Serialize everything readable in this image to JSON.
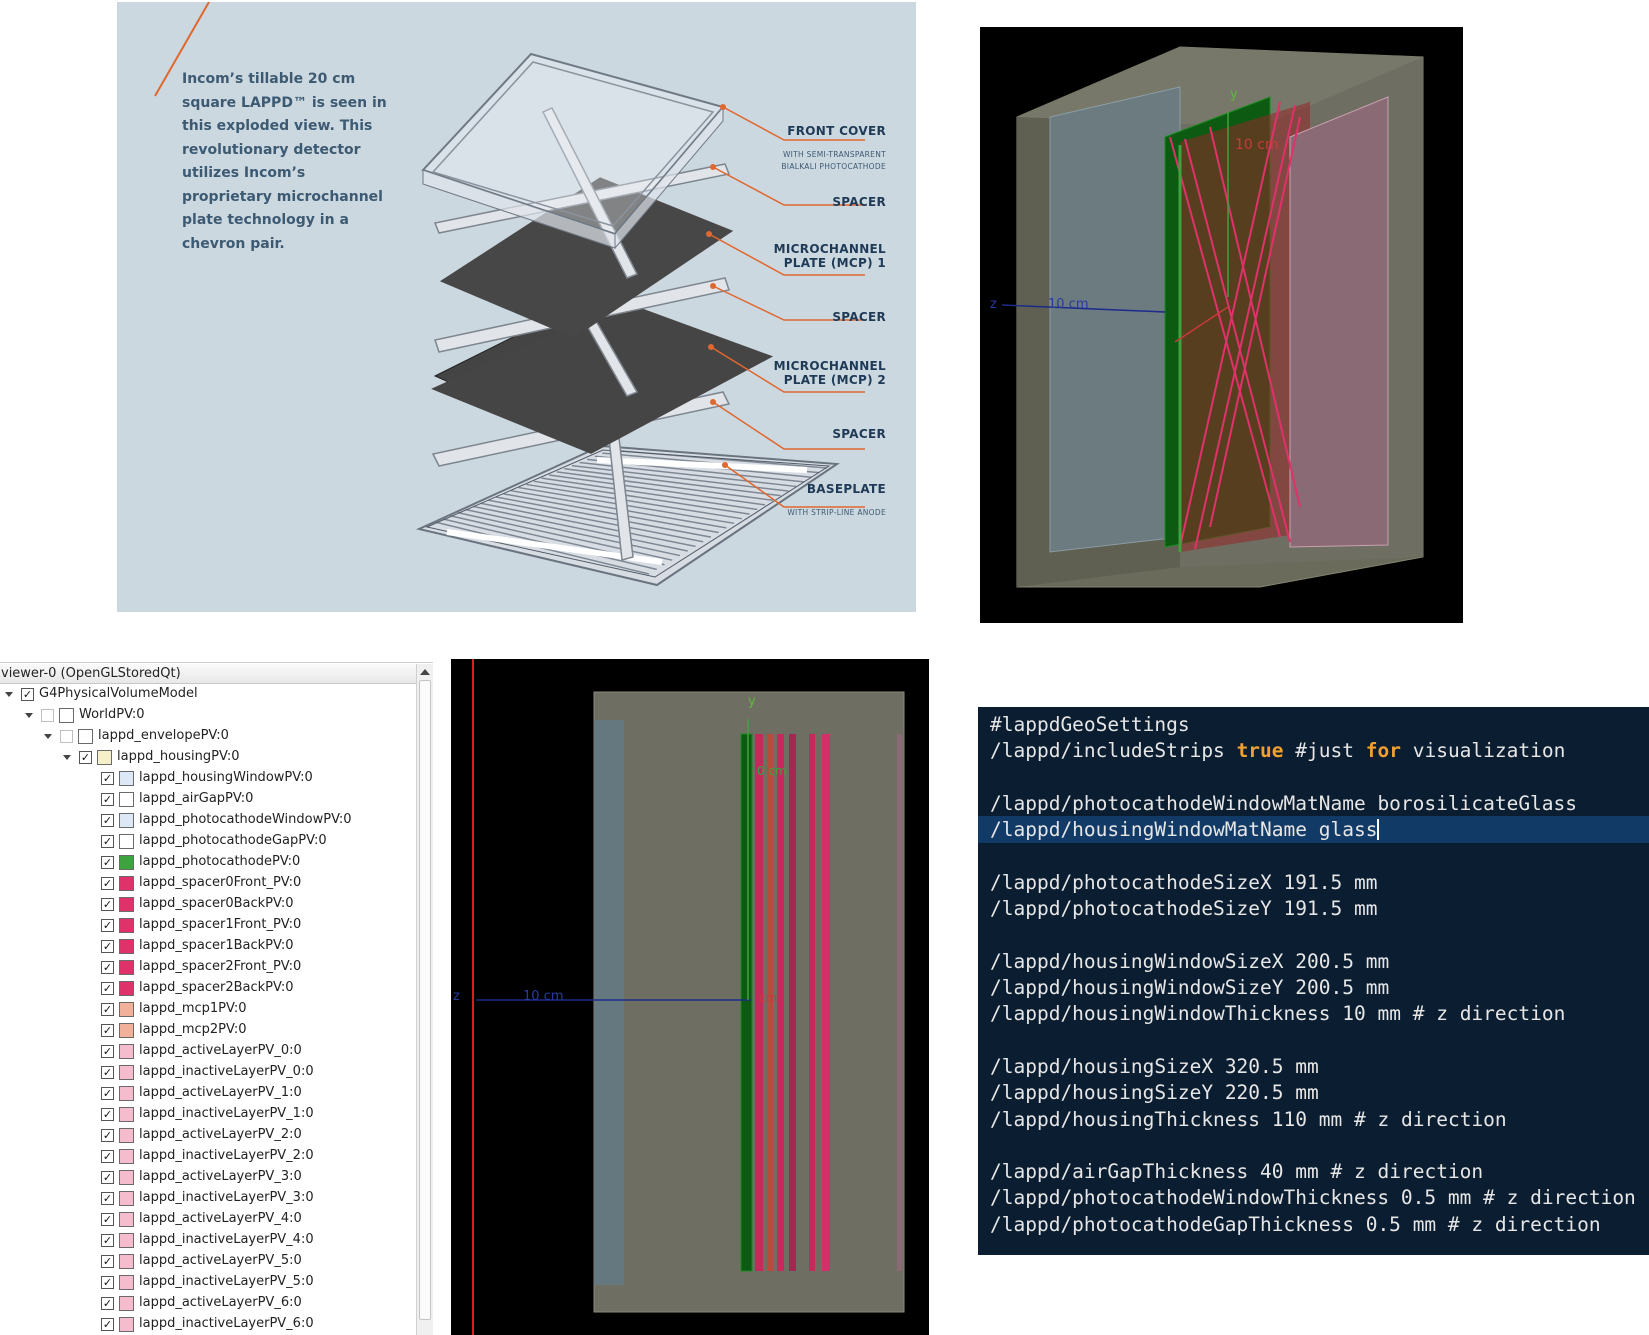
{
  "figure": {
    "caption": "Incom’s tillable 20 cm square LAPPD™ is seen in this exploded view. This revolutionary detector utilizes Incom’s proprietary microchannel plate technology in a chevron pair.",
    "labels": [
      {
        "title_lines": [
          "FRONT COVER"
        ],
        "sub_lines": [
          "WITH SEMI-TRANSPARENT",
          "BIALKALI PHOTOCATHODE"
        ]
      },
      {
        "title_lines": [
          "SPACER"
        ],
        "sub_lines": []
      },
      {
        "title_lines": [
          "MICROCHANNEL",
          "PLATE (MCP) 1"
        ],
        "sub_lines": []
      },
      {
        "title_lines": [
          "SPACER"
        ],
        "sub_lines": []
      },
      {
        "title_lines": [
          "MICROCHANNEL",
          "PLATE (MCP) 2"
        ],
        "sub_lines": []
      },
      {
        "title_lines": [
          "SPACER"
        ],
        "sub_lines": []
      },
      {
        "title_lines": [
          "BASEPLATE"
        ],
        "sub_lines": [
          "WITH STRIP-LINE ANODE"
        ]
      }
    ],
    "accent_color": "#e0672e"
  },
  "viewer3d": {
    "axis_y": "y",
    "axis_z": "z",
    "scale_label_top": "10 cm",
    "scale_label_left": "10 cm"
  },
  "tree": {
    "header": "viewer-0 (OpenGLStoredQt)",
    "items": [
      {
        "label": "G4PhysicalVolumeModel",
        "level": 0,
        "expanded": true,
        "checked": true,
        "color": null
      },
      {
        "label": "WorldPV:0",
        "level": 1,
        "expanded": true,
        "checked": false,
        "color": "#ffffff"
      },
      {
        "label": "lappd_envelopePV:0",
        "level": 2,
        "expanded": true,
        "checked": false,
        "color": "#ffffff"
      },
      {
        "label": "lappd_housingPV:0",
        "level": 3,
        "expanded": true,
        "checked": true,
        "color": "#f5f0c8"
      },
      {
        "label": "lappd_housingWindowPV:0",
        "level": 4,
        "checked": true,
        "color": "#dce8f5"
      },
      {
        "label": "lappd_airGapPV:0",
        "level": 4,
        "checked": true,
        "color": "#ffffff"
      },
      {
        "label": "lappd_photocathodeWindowPV:0",
        "level": 4,
        "checked": true,
        "color": "#dce8f5"
      },
      {
        "label": "lappd_photocathodeGapPV:0",
        "level": 4,
        "checked": true,
        "color": "#ffffff"
      },
      {
        "label": "lappd_photocathodePV:0",
        "level": 4,
        "checked": true,
        "color": "#3ea23e"
      },
      {
        "label": "lappd_spacer0Front_PV:0",
        "level": 4,
        "checked": true,
        "color": "#e0326a"
      },
      {
        "label": "lappd_spacer0BackPV:0",
        "level": 4,
        "checked": true,
        "color": "#e0326a"
      },
      {
        "label": "lappd_spacer1Front_PV:0",
        "level": 4,
        "checked": true,
        "color": "#e0326a"
      },
      {
        "label": "lappd_spacer1BackPV:0",
        "level": 4,
        "checked": true,
        "color": "#e0326a"
      },
      {
        "label": "lappd_spacer2Front_PV:0",
        "level": 4,
        "checked": true,
        "color": "#e0326a"
      },
      {
        "label": "lappd_spacer2BackPV:0",
        "level": 4,
        "checked": true,
        "color": "#e0326a"
      },
      {
        "label": "lappd_mcp1PV:0",
        "level": 4,
        "checked": true,
        "color": "#f0b09a"
      },
      {
        "label": "lappd_mcp2PV:0",
        "level": 4,
        "checked": true,
        "color": "#f0b09a"
      },
      {
        "label": "lappd_activeLayerPV_0:0",
        "level": 4,
        "checked": true,
        "color": "#f5bccd"
      },
      {
        "label": "lappd_inactiveLayerPV_0:0",
        "level": 4,
        "checked": true,
        "color": "#f5bccd"
      },
      {
        "label": "lappd_activeLayerPV_1:0",
        "level": 4,
        "checked": true,
        "color": "#f5bccd"
      },
      {
        "label": "lappd_inactiveLayerPV_1:0",
        "level": 4,
        "checked": true,
        "color": "#f5bccd"
      },
      {
        "label": "lappd_activeLayerPV_2:0",
        "level": 4,
        "checked": true,
        "color": "#f5bccd"
      },
      {
        "label": "lappd_inactiveLayerPV_2:0",
        "level": 4,
        "checked": true,
        "color": "#f5bccd"
      },
      {
        "label": "lappd_activeLayerPV_3:0",
        "level": 4,
        "checked": true,
        "color": "#f5bccd"
      },
      {
        "label": "lappd_inactiveLayerPV_3:0",
        "level": 4,
        "checked": true,
        "color": "#f5bccd"
      },
      {
        "label": "lappd_activeLayerPV_4:0",
        "level": 4,
        "checked": true,
        "color": "#f5bccd"
      },
      {
        "label": "lappd_inactiveLayerPV_4:0",
        "level": 4,
        "checked": true,
        "color": "#f5bccd"
      },
      {
        "label": "lappd_activeLayerPV_5:0",
        "level": 4,
        "checked": true,
        "color": "#f5bccd"
      },
      {
        "label": "lappd_inactiveLayerPV_5:0",
        "level": 4,
        "checked": true,
        "color": "#f5bccd"
      },
      {
        "label": "lappd_activeLayerPV_6:0",
        "level": 4,
        "checked": true,
        "color": "#f5bccd"
      },
      {
        "label": "lappd_inactiveLayerPV_6:0",
        "level": 4,
        "checked": true,
        "color": "#f5bccd"
      }
    ]
  },
  "viewer2d": {
    "axis_y": "y",
    "axis_z": "z",
    "scale_label": "10 cm",
    "scale_label_small_1": "0 cm",
    "scale_label_small_2": "cm"
  },
  "terminal": {
    "lines": [
      {
        "text": "#lappdGeoSettings"
      },
      {
        "text": "/lappd/includeStrips true #just for visualization"
      },
      {
        "text": ""
      },
      {
        "text": "/lappd/photocathodeWindowMatName borosilicateGlass"
      },
      {
        "text": "/lappd/housingWindowMatName glass",
        "highlighted": true
      },
      {
        "text": ""
      },
      {
        "text": "/lappd/photocathodeSizeX 191.5 mm"
      },
      {
        "text": "/lappd/photocathodeSizeY 191.5 mm"
      },
      {
        "text": ""
      },
      {
        "text": "/lappd/housingWindowSizeX 200.5 mm"
      },
      {
        "text": "/lappd/housingWindowSizeY 200.5 mm"
      },
      {
        "text": "/lappd/housingWindowThickness 10 mm # z direction"
      },
      {
        "text": ""
      },
      {
        "text": "/lappd/housingSizeX 320.5 mm"
      },
      {
        "text": "/lappd/housingSizeY 220.5 mm"
      },
      {
        "text": "/lappd/housingThickness 110 mm # z direction"
      },
      {
        "text": ""
      },
      {
        "text": "/lappd/airGapThickness 40 mm # z direction"
      },
      {
        "text": "/lappd/photocathodeWindowThickness 0.5 mm # z direction"
      },
      {
        "text": "/lappd/photocathodeGapThickness 0.5 mm # z direction"
      }
    ],
    "keywords": [
      "true",
      "for"
    ],
    "keyword_color": "#f0a030",
    "background": "#0b1d30"
  }
}
